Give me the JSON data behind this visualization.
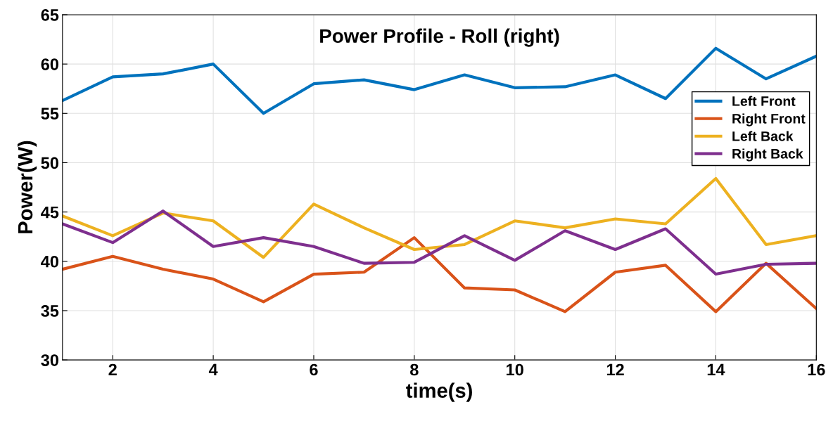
{
  "chart_data": {
    "type": "line",
    "title": "Power Profile - Roll (right)",
    "xlabel": "time(s)",
    "ylabel": "Power(W)",
    "x": [
      1,
      2,
      3,
      4,
      5,
      6,
      7,
      8,
      9,
      10,
      11,
      12,
      13,
      14,
      15,
      16
    ],
    "series": [
      {
        "name": "Left Front",
        "color": "#0072bd",
        "values": [
          56.3,
          58.7,
          59.0,
          60.0,
          55.0,
          58.0,
          58.4,
          57.4,
          58.9,
          57.6,
          57.7,
          58.9,
          56.5,
          61.6,
          58.5,
          60.8
        ]
      },
      {
        "name": "Right Front",
        "color": "#d95319",
        "values": [
          39.2,
          40.5,
          39.2,
          38.2,
          35.9,
          38.7,
          38.9,
          42.4,
          37.3,
          37.1,
          34.9,
          38.9,
          39.6,
          34.9,
          39.8,
          35.2
        ]
      },
      {
        "name": "Left Back",
        "color": "#edb120",
        "values": [
          44.6,
          42.6,
          44.9,
          44.1,
          40.4,
          45.8,
          43.4,
          41.2,
          41.7,
          44.1,
          43.4,
          44.3,
          43.8,
          48.4,
          41.7,
          42.6
        ]
      },
      {
        "name": "Right Back",
        "color": "#7e2f8e",
        "values": [
          43.8,
          41.9,
          45.1,
          41.5,
          42.4,
          41.5,
          39.8,
          39.9,
          42.6,
          40.1,
          43.1,
          41.2,
          43.3,
          38.7,
          39.7,
          39.8
        ]
      }
    ],
    "xlim": [
      1,
      16
    ],
    "xticks": [
      2,
      4,
      6,
      8,
      10,
      12,
      14,
      16
    ],
    "ylim": [
      30,
      65
    ],
    "yticks": [
      30,
      35,
      40,
      45,
      50,
      55,
      60,
      65
    ],
    "grid": true,
    "legend": "right",
    "line_style": "solid"
  }
}
